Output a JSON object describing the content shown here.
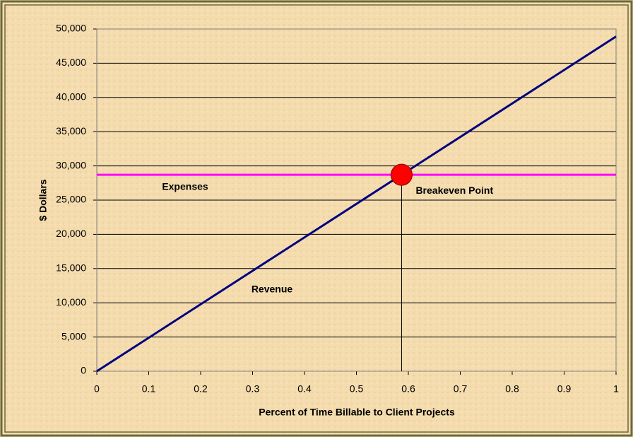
{
  "chart_data": {
    "type": "line",
    "x_label": "Percent of Time Billable to Client Projects",
    "y_label": "$ Dollars",
    "series": [
      {
        "name": "Revenue",
        "color": "#000080",
        "x": [
          0,
          1
        ],
        "values": [
          0,
          48900
        ]
      },
      {
        "name": "Expenses",
        "color": "#ff00ff",
        "x": [
          0,
          1
        ],
        "values": [
          28700,
          28700
        ]
      }
    ],
    "points": [
      {
        "name": "Breakeven Point",
        "x": 0.587,
        "y": 28700,
        "color": "#ff0000"
      }
    ],
    "xlim": [
      0,
      1
    ],
    "xticks": [
      0,
      0.1,
      0.2,
      0.3,
      0.4,
      0.5,
      0.6,
      0.7,
      0.8,
      0.9,
      1
    ],
    "ylim": [
      0,
      50000
    ],
    "yticks": [
      0,
      {
        "value": 5000,
        "label": "5,000"
      },
      {
        "value": 10000,
        "label": "10,000"
      },
      {
        "value": 15000,
        "label": "15,000"
      },
      {
        "value": 20000,
        "label": "20,000"
      },
      {
        "value": 25000,
        "label": "25,000"
      },
      {
        "value": 30000,
        "label": "30,000"
      },
      {
        "value": 35000,
        "label": "35,000"
      },
      {
        "value": 40000,
        "label": "40,000"
      },
      {
        "value": 45000,
        "label": "45,000"
      },
      {
        "value": 50000,
        "label": "50,000"
      }
    ],
    "grid": true
  }
}
